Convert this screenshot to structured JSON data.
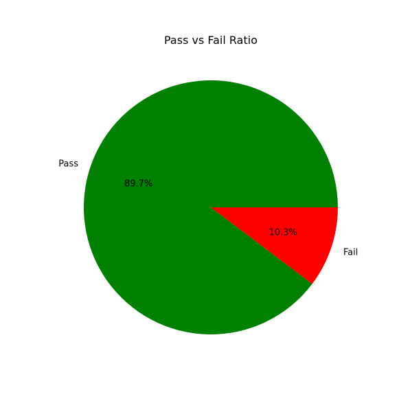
{
  "chart_data": {
    "type": "pie",
    "title": "Pass vs Fail Ratio",
    "slices": [
      {
        "label": "Pass",
        "pct_label": "89.7%",
        "value": 89.7,
        "color": "#008000"
      },
      {
        "label": "Fail",
        "pct_label": "10.3%",
        "value": 10.3,
        "color": "#ff0000"
      }
    ]
  }
}
